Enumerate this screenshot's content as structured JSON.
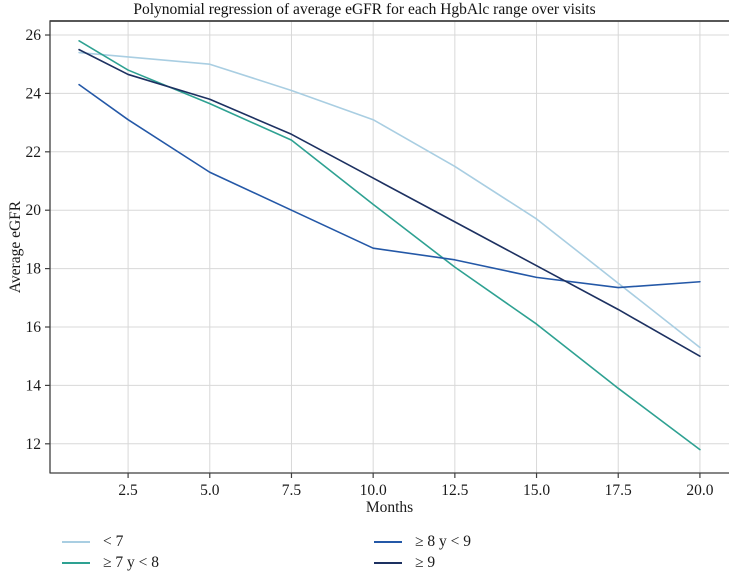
{
  "title": "Polynomial regression of average eGFR for each HgbAlc range over visits",
  "colors": {
    "grid": "#d8d8d8",
    "border": "#3f3f3f",
    "text": "#1a1a1a",
    "background": "#ffffff"
  },
  "chart_data": {
    "type": "line",
    "title": "Polynomial regression of average eGFR for each HgbAlc range over visits",
    "xlabel": "Months",
    "ylabel": "Average eGFR",
    "grid": true,
    "legend_position": "bottom, two columns",
    "xlim": [
      0.11,
      20.89
    ],
    "ylim": [
      11.0,
      26.48
    ],
    "x_ticks": [
      2.5,
      5.0,
      7.5,
      10.0,
      12.5,
      15.0,
      17.5,
      20.0
    ],
    "x_tick_labels": [
      "2.5",
      "5.0",
      "7.5",
      "10.0",
      "12.5",
      "15.0",
      "17.5",
      "20.0"
    ],
    "y_ticks": [
      12,
      14,
      16,
      18,
      20,
      22,
      24,
      26
    ],
    "x": [
      1,
      2.5,
      5,
      7.5,
      10,
      12.5,
      15,
      17.5,
      20
    ],
    "series": [
      {
        "id": "lt7",
        "name": "< 7",
        "color": "#a9cee2",
        "values": [
          25.4,
          25.25,
          25.0,
          24.1,
          23.1,
          21.5,
          19.7,
          17.5,
          15.3
        ]
      },
      {
        "id": "gte7-lt8",
        "name": "≥ 7 y < 8",
        "color": "#2ea192",
        "values": [
          25.8,
          24.8,
          23.65,
          22.4,
          20.2,
          18.05,
          16.1,
          13.9,
          11.8
        ]
      },
      {
        "id": "gte8-lt9",
        "name": "≥ 8 y < 9",
        "color": "#2458a7",
        "values": [
          24.3,
          23.1,
          21.3,
          20.0,
          18.7,
          18.3,
          17.7,
          17.35,
          17.55
        ]
      },
      {
        "id": "gte9",
        "name": "≥ 9",
        "color": "#1d3161",
        "values": [
          25.5,
          24.65,
          23.8,
          22.6,
          21.1,
          19.6,
          18.1,
          16.6,
          15.0
        ]
      }
    ]
  }
}
